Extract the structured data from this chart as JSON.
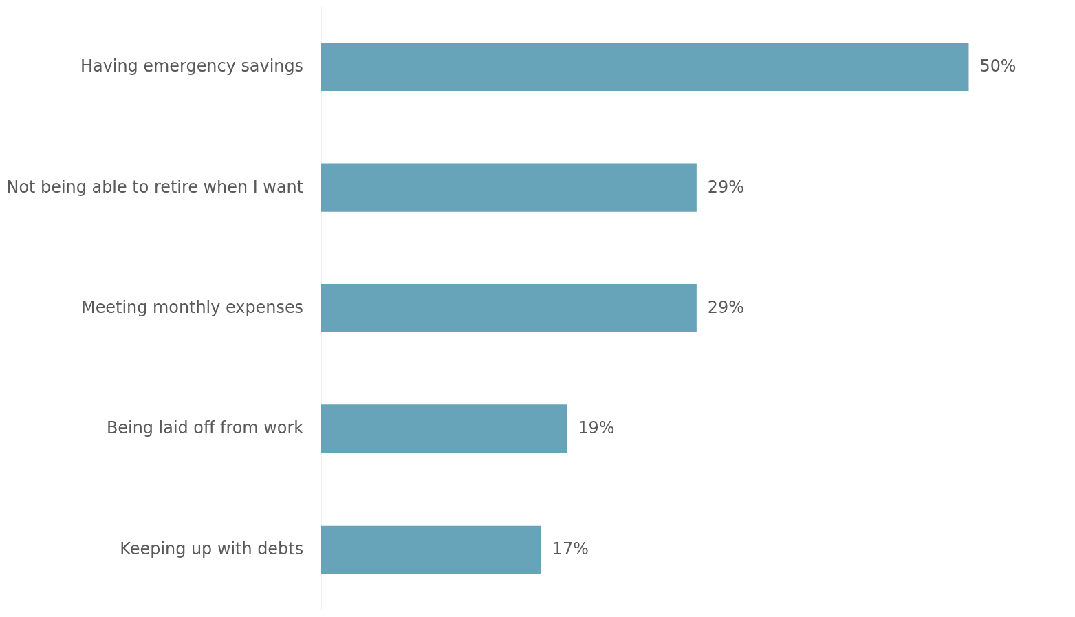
{
  "chart_data": {
    "type": "bar",
    "orientation": "horizontal",
    "categories": [
      "Having emergency savings",
      "Not being able to retire when I want",
      "Meeting monthly expenses",
      "Being laid off from work",
      "Keeping up with debts"
    ],
    "values": [
      50,
      29,
      29,
      19,
      17
    ],
    "value_labels": [
      "50%",
      "29%",
      "29%",
      "19%",
      "17%"
    ],
    "color": "#67a3b9",
    "xlim": [
      0,
      50
    ],
    "tick_labels": "y"
  }
}
